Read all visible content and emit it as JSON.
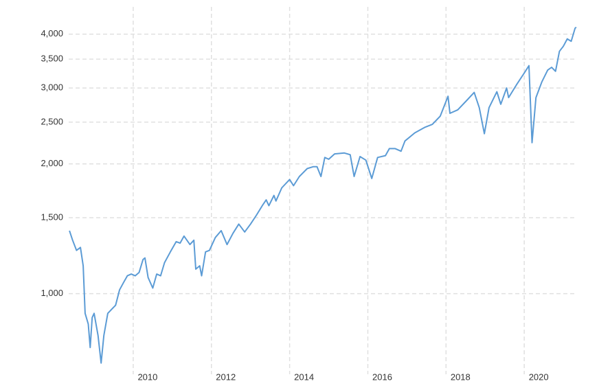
{
  "chart_data": {
    "type": "line",
    "log_y": true,
    "grid": true,
    "xlim": [
      2008.35,
      2021.35
    ],
    "xticks": [
      2010,
      2012,
      2014,
      2016,
      2018,
      2020
    ],
    "ylim": [
      650,
      4300
    ],
    "yticks": [
      {
        "value": 1000,
        "label": "1,000"
      },
      {
        "value": 1500,
        "label": "1,500"
      },
      {
        "value": 2000,
        "label": "2,000"
      },
      {
        "value": 2500,
        "label": "2,500"
      },
      {
        "value": 3000,
        "label": "3,000"
      },
      {
        "value": 3500,
        "label": "3,500"
      },
      {
        "value": 4000,
        "label": "4,000"
      }
    ],
    "series": [
      {
        "color": "#5b9bd5",
        "x": [
          2008.37,
          2008.45,
          2008.55,
          2008.65,
          2008.72,
          2008.77,
          2008.85,
          2008.9,
          2008.95,
          2009.0,
          2009.1,
          2009.18,
          2009.25,
          2009.35,
          2009.45,
          2009.55,
          2009.65,
          2009.75,
          2009.85,
          2009.95,
          2010.05,
          2010.15,
          2010.25,
          2010.3,
          2010.38,
          2010.5,
          2010.6,
          2010.7,
          2010.8,
          2010.95,
          2011.1,
          2011.2,
          2011.3,
          2011.45,
          2011.55,
          2011.6,
          2011.7,
          2011.75,
          2011.85,
          2011.95,
          2012.1,
          2012.25,
          2012.4,
          2012.55,
          2012.7,
          2012.85,
          2013.0,
          2013.15,
          2013.3,
          2013.4,
          2013.47,
          2013.6,
          2013.65,
          2013.8,
          2014.0,
          2014.1,
          2014.25,
          2014.45,
          2014.6,
          2014.7,
          2014.8,
          2014.9,
          2015.0,
          2015.15,
          2015.4,
          2015.55,
          2015.65,
          2015.8,
          2015.95,
          2016.1,
          2016.25,
          2016.45,
          2016.55,
          2016.7,
          2016.85,
          2016.95,
          2017.2,
          2017.45,
          2017.65,
          2017.85,
          2018.05,
          2018.1,
          2018.3,
          2018.55,
          2018.72,
          2018.85,
          2018.98,
          2019.1,
          2019.3,
          2019.4,
          2019.55,
          2019.6,
          2019.8,
          2020.0,
          2020.12,
          2020.2,
          2020.3,
          2020.45,
          2020.6,
          2020.7,
          2020.8,
          2020.9,
          2021.0,
          2021.1,
          2021.2,
          2021.3,
          2021.33
        ],
        "values": [
          1400,
          1330,
          1260,
          1280,
          1160,
          900,
          850,
          750,
          880,
          900,
          800,
          690,
          800,
          900,
          920,
          940,
          1020,
          1060,
          1100,
          1110,
          1100,
          1120,
          1200,
          1210,
          1090,
          1030,
          1110,
          1100,
          1180,
          1250,
          1320,
          1310,
          1360,
          1300,
          1330,
          1140,
          1160,
          1100,
          1250,
          1260,
          1350,
          1400,
          1300,
          1380,
          1450,
          1390,
          1450,
          1520,
          1600,
          1650,
          1600,
          1690,
          1640,
          1760,
          1840,
          1780,
          1870,
          1950,
          1970,
          1970,
          1870,
          2070,
          2050,
          2110,
          2120,
          2100,
          1870,
          2080,
          2040,
          1850,
          2070,
          2090,
          2170,
          2170,
          2140,
          2260,
          2360,
          2430,
          2470,
          2580,
          2870,
          2620,
          2670,
          2820,
          2930,
          2700,
          2350,
          2700,
          2940,
          2750,
          3000,
          2850,
          3050,
          3250,
          3380,
          2240,
          2850,
          3100,
          3300,
          3350,
          3280,
          3650,
          3750,
          3900,
          3850,
          4130,
          4150
        ]
      }
    ]
  }
}
